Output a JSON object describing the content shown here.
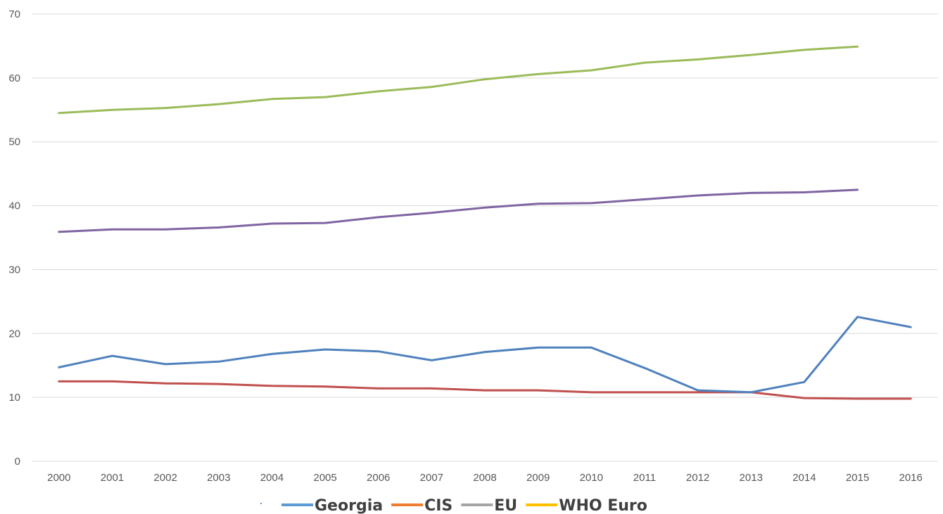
{
  "chart_data": {
    "type": "line",
    "categories": [
      "2000",
      "2001",
      "2002",
      "2003",
      "2004",
      "2005",
      "2006",
      "2007",
      "2008",
      "2009",
      "2010",
      "2011",
      "2012",
      "2013",
      "2014",
      "2015",
      "2016"
    ],
    "ylim": [
      0,
      70
    ],
    "yticks": [
      0,
      10,
      20,
      30,
      40,
      50,
      60,
      70
    ],
    "grid": true,
    "legend_position": "bottom",
    "series": [
      {
        "name": "Georgia",
        "color": "#4f81bd",
        "values": [
          14.7,
          16.5,
          15.2,
          15.6,
          16.8,
          17.5,
          17.2,
          15.8,
          17.1,
          17.8,
          17.8,
          14.6,
          11.1,
          10.8,
          12.4,
          22.6,
          21.0
        ]
      },
      {
        "name": "",
        "color": "#c0504d",
        "values": [
          12.5,
          12.5,
          12.2,
          12.1,
          11.8,
          11.7,
          11.4,
          11.4,
          11.1,
          11.1,
          10.8,
          10.8,
          10.8,
          10.8,
          9.9,
          9.8,
          9.8
        ]
      },
      {
        "name": "",
        "color": "#8064a2",
        "values": [
          35.9,
          36.3,
          36.3,
          36.6,
          37.2,
          37.3,
          38.2,
          38.9,
          39.7,
          40.3,
          40.4,
          41.0,
          41.6,
          42.0,
          42.1,
          42.5,
          null
        ]
      },
      {
        "name": "",
        "color": "#9bbb59",
        "values": [
          54.5,
          55.0,
          55.3,
          55.9,
          56.7,
          57.0,
          57.9,
          58.6,
          59.8,
          60.6,
          61.2,
          62.4,
          62.9,
          63.6,
          64.4,
          64.9,
          null
        ]
      }
    ],
    "legend": [
      {
        "label": "Georgia",
        "color": "#5b9bd5"
      },
      {
        "label": "CIS",
        "color": "#ed7d31"
      },
      {
        "label": "EU",
        "color": "#a5a5a5"
      },
      {
        "label": "WHO Euro",
        "color": "#ffc000"
      }
    ]
  }
}
